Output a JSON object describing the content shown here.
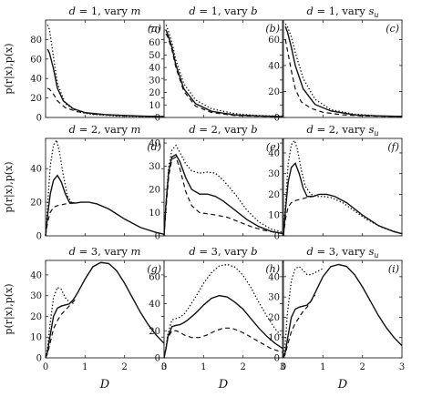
{
  "figure": {
    "x_label": "D",
    "y_label": "p(r|x),p(x)"
  },
  "chart_data": [
    {
      "type": "line",
      "row": 0,
      "col": 0,
      "title": "d = 1, vary m",
      "letter": "(a)",
      "ylim": [
        0,
        100
      ],
      "yticks": [
        0,
        20,
        40,
        60,
        80
      ],
      "xlim": [
        0,
        3
      ],
      "xticks": [
        0,
        1,
        2,
        3
      ],
      "series": [
        {
          "style": "dotted",
          "x": [
            0.05,
            0.1,
            0.2,
            0.3,
            0.5,
            0.8,
            1.2,
            1.8,
            2.4,
            3.0
          ],
          "y": [
            95,
            90,
            62,
            35,
            14,
            6,
            3,
            1.5,
            1,
            0.8
          ]
        },
        {
          "style": "solid",
          "x": [
            0.05,
            0.1,
            0.2,
            0.3,
            0.45,
            0.7,
            1.0,
            1.5,
            2.0,
            2.5,
            3.0
          ],
          "y": [
            70,
            66,
            50,
            30,
            17,
            9,
            5,
            3,
            2,
            1.3,
            1
          ]
        },
        {
          "style": "dashed",
          "x": [
            0.05,
            0.1,
            0.2,
            0.3,
            0.5,
            0.8,
            1.2,
            1.8,
            2.4,
            3.0
          ],
          "y": [
            30,
            29,
            24,
            17,
            10,
            6,
            3.5,
            2,
            1.3,
            1
          ]
        }
      ]
    },
    {
      "type": "line",
      "row": 0,
      "col": 1,
      "title": "d = 1, vary b",
      "letter": "(b)",
      "ylim": [
        0,
        78
      ],
      "yticks": [
        0,
        10,
        20,
        30,
        40,
        50,
        60,
        70
      ],
      "xlim": [
        0,
        3
      ],
      "xticks": [
        0,
        1,
        2,
        3
      ],
      "series": [
        {
          "style": "dotted",
          "x": [
            0.05,
            0.1,
            0.2,
            0.3,
            0.5,
            0.8,
            1.2,
            1.8,
            2.4,
            3.0
          ],
          "y": [
            74,
            70,
            60,
            46,
            27,
            14,
            7,
            3,
            1.5,
            1
          ]
        },
        {
          "style": "solid",
          "x": [
            0.05,
            0.1,
            0.2,
            0.3,
            0.5,
            0.8,
            1.2,
            1.8,
            2.4,
            3.0
          ],
          "y": [
            70,
            66,
            56,
            42,
            23,
            11,
            5,
            2,
            1.2,
            0.8
          ]
        },
        {
          "style": "dashed",
          "x": [
            0.05,
            0.1,
            0.2,
            0.3,
            0.5,
            0.8,
            1.2,
            1.8,
            2.4,
            3.0
          ],
          "y": [
            67,
            64,
            54,
            40,
            21,
            9,
            4,
            1.5,
            1,
            0.6
          ]
        }
      ]
    },
    {
      "type": "line",
      "row": 0,
      "col": 2,
      "title": "d = 1, vary s_u",
      "letter": "(c)",
      "ylim": [
        0,
        75
      ],
      "yticks": [
        0,
        20,
        40,
        60
      ],
      "xlim": [
        0,
        3
      ],
      "xticks": [
        0,
        1,
        2,
        3
      ],
      "series": [
        {
          "style": "dotted",
          "x": [
            0.05,
            0.1,
            0.2,
            0.3,
            0.5,
            0.8,
            1.2,
            1.8,
            2.4,
            3.0
          ],
          "y": [
            72,
            70,
            62,
            50,
            30,
            14,
            6,
            2.5,
            1.2,
            0.8
          ]
        },
        {
          "style": "solid",
          "x": [
            0.05,
            0.1,
            0.2,
            0.3,
            0.5,
            0.8,
            1.2,
            1.8,
            2.4,
            3.0
          ],
          "y": [
            70,
            66,
            54,
            40,
            22,
            10,
            5,
            2,
            1.2,
            0.8
          ]
        },
        {
          "style": "dashed",
          "x": [
            0.05,
            0.1,
            0.2,
            0.3,
            0.45,
            0.7,
            1.0,
            1.5,
            2.0,
            3.0
          ],
          "y": [
            60,
            52,
            36,
            22,
            12,
            7,
            4,
            2,
            1.2,
            0.6
          ]
        }
      ]
    },
    {
      "type": "line",
      "row": 1,
      "col": 0,
      "title": "d = 2, vary m",
      "letter": "(d)",
      "ylim": [
        0,
        58
      ],
      "yticks": [
        0,
        20,
        40
      ],
      "xlim": [
        0,
        3
      ],
      "xticks": [
        0,
        1,
        2,
        3
      ],
      "series": [
        {
          "style": "dotted",
          "x": [
            0,
            0.05,
            0.12,
            0.2,
            0.28,
            0.35,
            0.45,
            0.55,
            0.65,
            0.75
          ],
          "y": [
            0,
            18,
            42,
            54,
            57,
            50,
            36,
            24,
            20,
            19.5
          ]
        },
        {
          "style": "solid",
          "x": [
            0,
            0.05,
            0.12,
            0.2,
            0.3,
            0.4,
            0.5,
            0.6,
            0.75,
            0.9,
            1.1,
            1.3,
            1.6,
            2.0,
            2.4,
            2.8,
            3.0
          ],
          "y": [
            0,
            12,
            25,
            33,
            36,
            32,
            25,
            20,
            19.5,
            20,
            20,
            19,
            16,
            10,
            5,
            2,
            1
          ]
        },
        {
          "style": "dashed",
          "x": [
            0,
            0.05,
            0.12,
            0.2,
            0.3,
            0.4,
            0.5,
            0.6,
            0.75
          ],
          "y": [
            0,
            8,
            14,
            17,
            18,
            18.5,
            19,
            19.3,
            19.5
          ]
        }
      ]
    },
    {
      "type": "line",
      "row": 1,
      "col": 1,
      "title": "d = 2, vary b",
      "letter": "(e)",
      "ylim": [
        0,
        42
      ],
      "yticks": [
        0,
        10,
        20,
        30,
        40
      ],
      "xlim": [
        0,
        3
      ],
      "xticks": [
        0,
        1,
        2,
        3
      ],
      "series": [
        {
          "style": "dotted",
          "x": [
            0,
            0.05,
            0.12,
            0.2,
            0.3,
            0.4,
            0.55,
            0.7,
            0.9,
            1.1,
            1.3,
            1.5,
            1.8,
            2.1,
            2.4,
            2.7,
            3.0
          ],
          "y": [
            0,
            15,
            30,
            37,
            39,
            36,
            31,
            28,
            27,
            27.5,
            27,
            24,
            18,
            11,
            6,
            3,
            1.5
          ]
        },
        {
          "style": "solid",
          "x": [
            0,
            0.05,
            0.12,
            0.2,
            0.3,
            0.4,
            0.55,
            0.7,
            0.9,
            1.1,
            1.3,
            1.5,
            1.8,
            2.1,
            2.4,
            2.7,
            3.0
          ],
          "y": [
            0,
            14,
            28,
            34,
            35,
            32,
            25,
            20,
            18,
            18,
            17,
            15,
            11,
            7,
            4,
            2,
            1
          ]
        },
        {
          "style": "dashed",
          "x": [
            0,
            0.05,
            0.12,
            0.2,
            0.3,
            0.4,
            0.55,
            0.7,
            0.9,
            1.1,
            1.3,
            1.6,
            1.9,
            2.2,
            2.5,
            2.8,
            3.0
          ],
          "y": [
            0,
            12,
            26,
            33,
            34,
            29,
            19,
            13,
            10,
            9.5,
            9,
            8,
            6,
            4,
            2.5,
            1.5,
            1
          ]
        }
      ]
    },
    {
      "type": "line",
      "row": 1,
      "col": 2,
      "title": "d = 2, vary s_u",
      "letter": "(f)",
      "ylim": [
        0,
        47
      ],
      "yticks": [
        0,
        10,
        20,
        30,
        40
      ],
      "xlim": [
        0,
        3
      ],
      "xticks": [
        0,
        1,
        2,
        3
      ],
      "series": [
        {
          "style": "dotted",
          "x": [
            0,
            0.05,
            0.12,
            0.2,
            0.28,
            0.35,
            0.45,
            0.55,
            0.7,
            0.85,
            1.0,
            1.2,
            1.5,
            1.8,
            2.1,
            2.5,
            3.0
          ],
          "y": [
            0,
            15,
            35,
            44,
            46,
            42,
            32,
            24,
            20,
            19,
            19,
            18.5,
            16,
            12,
            8,
            4,
            1
          ]
        },
        {
          "style": "solid",
          "x": [
            0,
            0.05,
            0.12,
            0.2,
            0.3,
            0.4,
            0.5,
            0.6,
            0.75,
            0.9,
            1.1,
            1.3,
            1.6,
            2.0,
            2.4,
            2.8,
            3.0
          ],
          "y": [
            0,
            12,
            26,
            33,
            35,
            30,
            23,
            19,
            19,
            20,
            20,
            19,
            16,
            10,
            5,
            2,
            1
          ]
        },
        {
          "style": "dashed",
          "x": [
            0,
            0.05,
            0.12,
            0.2,
            0.3,
            0.4,
            0.5,
            0.6,
            0.75
          ],
          "y": [
            0,
            8,
            14,
            16,
            17,
            17.5,
            18,
            18.5,
            19
          ]
        }
      ]
    },
    {
      "type": "line",
      "row": 2,
      "col": 0,
      "title": "d = 3, vary m",
      "letter": "(g)",
      "ylim": [
        0,
        47
      ],
      "yticks": [
        0,
        10,
        20,
        30,
        40
      ],
      "xlim": [
        0,
        3
      ],
      "xticks": [
        0,
        1,
        2,
        3
      ],
      "series": [
        {
          "style": "dotted",
          "x": [
            0,
            0.05,
            0.1,
            0.2,
            0.3,
            0.4,
            0.5,
            0.6,
            0.7
          ],
          "y": [
            0,
            5,
            14,
            29,
            34,
            33,
            29,
            27,
            26
          ]
        },
        {
          "style": "solid",
          "x": [
            0,
            0.05,
            0.1,
            0.2,
            0.3,
            0.4,
            0.5,
            0.6,
            0.7,
            0.8,
            1.0,
            1.2,
            1.4,
            1.6,
            1.8,
            2.0,
            2.2,
            2.4,
            2.6,
            2.8,
            3.0
          ],
          "y": [
            0,
            3,
            9,
            20,
            24,
            25,
            25.5,
            26,
            28,
            31,
            38,
            44,
            46,
            45.5,
            42,
            36,
            29,
            22,
            16,
            11,
            7
          ]
        },
        {
          "style": "dashed",
          "x": [
            0,
            0.05,
            0.1,
            0.2,
            0.3,
            0.4,
            0.5,
            0.6,
            0.7,
            0.8
          ],
          "y": [
            0,
            2,
            6,
            14,
            18,
            21,
            23,
            25,
            27,
            29
          ]
        }
      ]
    },
    {
      "type": "line",
      "row": 2,
      "col": 1,
      "title": "d = 3, vary b",
      "letter": "(h)",
      "ylim": [
        0,
        72
      ],
      "yticks": [
        0,
        20,
        40,
        60
      ],
      "xlim": [
        0,
        3
      ],
      "xticks": [
        0,
        1,
        2,
        3
      ],
      "series": [
        {
          "style": "dotted",
          "x": [
            0,
            0.05,
            0.1,
            0.2,
            0.3,
            0.4,
            0.5,
            0.6,
            0.8,
            1.0,
            1.2,
            1.4,
            1.6,
            1.8,
            2.0,
            2.2,
            2.4,
            2.6,
            2.8,
            3.0
          ],
          "y": [
            0,
            8,
            18,
            28,
            29,
            30,
            32,
            36,
            45,
            55,
            63,
            68,
            69,
            67,
            61,
            52,
            41,
            31,
            22,
            15
          ]
        },
        {
          "style": "solid",
          "x": [
            0,
            0.05,
            0.1,
            0.2,
            0.3,
            0.4,
            0.5,
            0.6,
            0.8,
            1.0,
            1.2,
            1.4,
            1.6,
            1.8,
            2.0,
            2.2,
            2.4,
            2.6,
            2.8,
            3.0
          ],
          "y": [
            0,
            7,
            16,
            23,
            24,
            24.5,
            26,
            28,
            33,
            39,
            44,
            46,
            45,
            41,
            36,
            29,
            22,
            16,
            11,
            7
          ]
        },
        {
          "style": "dashed",
          "x": [
            0,
            0.05,
            0.1,
            0.2,
            0.3,
            0.4,
            0.5,
            0.7,
            0.9,
            1.1,
            1.3,
            1.5,
            1.7,
            1.9,
            2.1,
            2.4,
            2.7,
            3.0
          ],
          "y": [
            0,
            7,
            15,
            20,
            20,
            19,
            17,
            15,
            15,
            17,
            20,
            22,
            22,
            20,
            17,
            12,
            7,
            4
          ]
        }
      ]
    },
    {
      "type": "line",
      "row": 2,
      "col": 2,
      "title": "d = 3, vary s_u",
      "letter": "(i)",
      "ylim": [
        0,
        48
      ],
      "yticks": [
        0,
        10,
        20,
        30,
        40
      ],
      "xlim": [
        0,
        3
      ],
      "xticks": [
        0,
        1,
        2,
        3
      ],
      "series": [
        {
          "style": "dotted",
          "x": [
            0,
            0.05,
            0.1,
            0.2,
            0.3,
            0.4,
            0.5,
            0.6,
            0.7,
            0.8,
            0.9,
            1.0
          ],
          "y": [
            0,
            8,
            22,
            38,
            44,
            45,
            43,
            41,
            41,
            42,
            43,
            44
          ]
        },
        {
          "style": "solid",
          "x": [
            0,
            0.05,
            0.1,
            0.2,
            0.3,
            0.4,
            0.5,
            0.6,
            0.7,
            0.8,
            1.0,
            1.2,
            1.4,
            1.6,
            1.8,
            2.0,
            2.2,
            2.4,
            2.6,
            2.8,
            3.0
          ],
          "y": [
            0,
            3,
            9,
            20,
            24,
            25,
            25.5,
            26,
            28,
            32,
            40,
            45,
            46,
            45,
            41,
            35,
            28,
            21,
            15,
            10,
            6
          ]
        },
        {
          "style": "dashed",
          "x": [
            0,
            0.05,
            0.1,
            0.2,
            0.3,
            0.4,
            0.5,
            0.6,
            0.7,
            0.8
          ],
          "y": [
            0,
            2,
            6,
            13,
            17,
            20,
            23,
            25,
            28,
            31
          ]
        }
      ]
    }
  ]
}
